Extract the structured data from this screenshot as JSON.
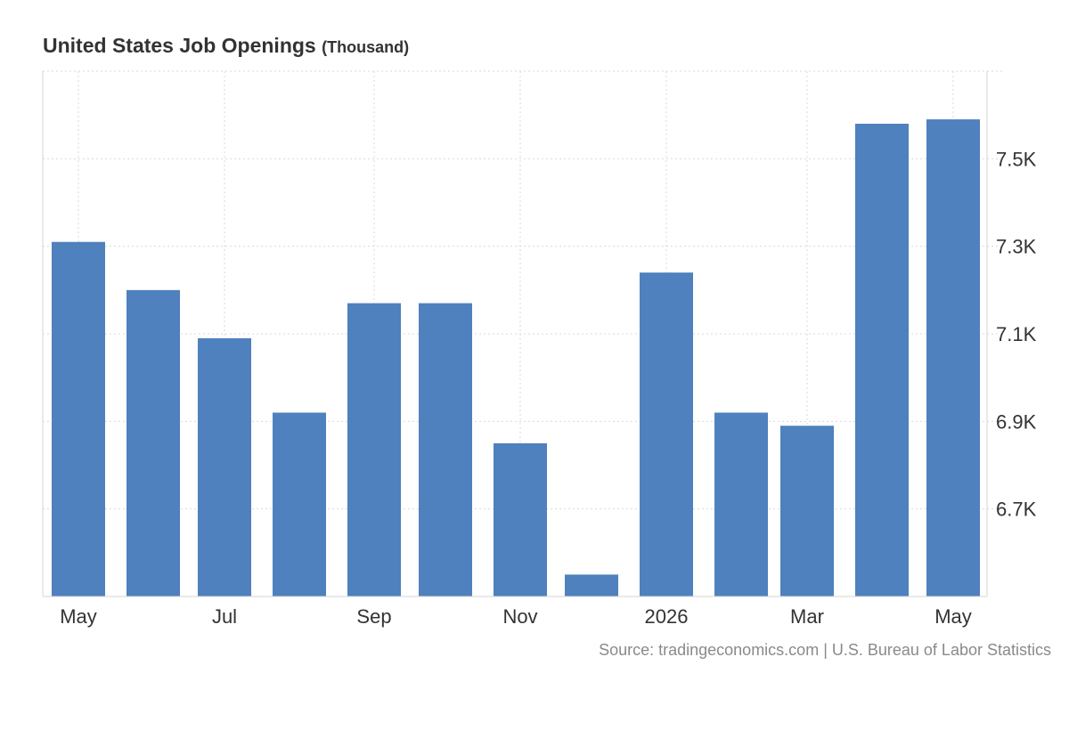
{
  "title": "United States Job Openings",
  "unit": "(Thousand)",
  "source": "Source: tradingeconomics.com | U.S. Bureau of Labor Statistics",
  "colors": {
    "bar": "#4e81bd",
    "grid": "#d9d9d9",
    "axis": "#d4d4d4",
    "text": "#333333",
    "source": "#8a8a8a"
  },
  "chart_data": {
    "type": "bar",
    "title": "United States Job Openings",
    "ylabel": "",
    "xlabel": "",
    "y_axis_position": "right",
    "grid": true,
    "ylim": [
      6.5,
      7.7
    ],
    "values": [
      7.31,
      7.2,
      7.09,
      6.92,
      7.17,
      7.17,
      6.85,
      6.55,
      7.24,
      6.92,
      6.89,
      7.58,
      7.59
    ],
    "x_ticks": [
      {
        "index": 0,
        "label": "May"
      },
      {
        "index": 2,
        "label": "Jul"
      },
      {
        "index": 4,
        "label": "Sep"
      },
      {
        "index": 6,
        "label": "Nov"
      },
      {
        "index": 8,
        "label": "2026"
      },
      {
        "index": 10,
        "label": "Mar"
      },
      {
        "index": 12,
        "label": "May"
      }
    ],
    "y_ticks": [
      {
        "value": 6.7,
        "label": "6.7K"
      },
      {
        "value": 6.9,
        "label": "6.9K"
      },
      {
        "value": 7.1,
        "label": "7.1K"
      },
      {
        "value": 7.3,
        "label": "7.3K"
      },
      {
        "value": 7.5,
        "label": "7.5K"
      }
    ]
  }
}
